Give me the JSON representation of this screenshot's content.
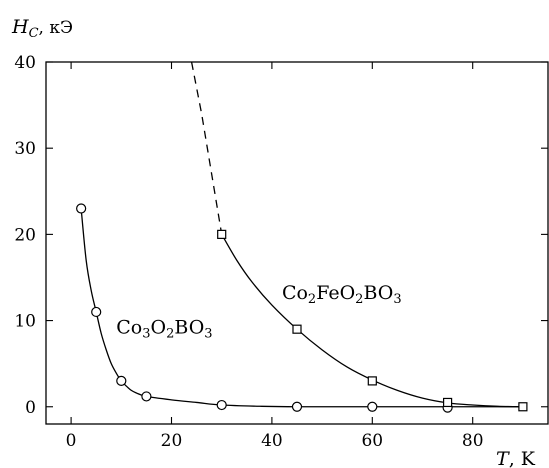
{
  "chart_data": {
    "type": "scatter",
    "ylabel_var": "H",
    "ylabel_sub": "C",
    "ylabel_unit": ", кЭ",
    "xlabel_var": "T",
    "xlabel_unit": ", K",
    "xlim": [
      -5,
      95
    ],
    "ylim": [
      -2,
      40
    ],
    "xticks": [
      0,
      20,
      40,
      60,
      80
    ],
    "yticks": [
      0,
      10,
      20,
      30,
      40
    ],
    "series": [
      {
        "label_parts": [
          {
            "t": "Co",
            "sub": false
          },
          {
            "t": "3",
            "sub": true
          },
          {
            "t": "O",
            "sub": false
          },
          {
            "t": "2",
            "sub": true
          },
          {
            "t": "BO",
            "sub": false
          },
          {
            "t": "3",
            "sub": true
          }
        ],
        "marker": "circle",
        "x": [
          2,
          5,
          10,
          15,
          30,
          45,
          60,
          75
        ],
        "y": [
          23,
          11,
          3,
          1.2,
          0.2,
          0.0,
          0.0,
          -0.1
        ],
        "curve": [
          [
            2,
            23
          ],
          [
            3,
            17
          ],
          [
            4,
            13.5
          ],
          [
            5,
            11
          ],
          [
            6,
            8.5
          ],
          [
            7,
            6.6
          ],
          [
            8,
            5.0
          ],
          [
            9,
            3.9
          ],
          [
            10,
            3.0
          ],
          [
            11,
            2.4
          ],
          [
            12,
            1.9
          ],
          [
            13,
            1.6
          ],
          [
            15,
            1.2
          ],
          [
            20,
            0.8
          ],
          [
            25,
            0.5
          ],
          [
            30,
            0.2
          ],
          [
            38,
            0.05
          ],
          [
            45,
            0.0
          ],
          [
            60,
            0.0
          ],
          [
            75,
            0.0
          ],
          [
            90,
            0.0
          ]
        ],
        "label_pos": [
          9,
          8.5
        ]
      },
      {
        "label_parts": [
          {
            "t": "Co",
            "sub": false
          },
          {
            "t": "2",
            "sub": true
          },
          {
            "t": "FeO",
            "sub": false
          },
          {
            "t": "2",
            "sub": true
          },
          {
            "t": "BO",
            "sub": false
          },
          {
            "t": "3",
            "sub": true
          }
        ],
        "marker": "square",
        "x": [
          30,
          45,
          60,
          75,
          90
        ],
        "y": [
          20,
          9,
          3,
          0.5,
          0
        ],
        "curve": [
          [
            30,
            20
          ],
          [
            33,
            17
          ],
          [
            36,
            14.5
          ],
          [
            40,
            11.8
          ],
          [
            45,
            9.0
          ],
          [
            50,
            6.6
          ],
          [
            55,
            4.6
          ],
          [
            60,
            3.1
          ],
          [
            65,
            1.9
          ],
          [
            70,
            1.0
          ],
          [
            75,
            0.45
          ],
          [
            80,
            0.2
          ],
          [
            85,
            0.05
          ],
          [
            90,
            0.0
          ]
        ],
        "dashed": [
          [
            24,
            40
          ],
          [
            26,
            34
          ],
          [
            28,
            27
          ],
          [
            30,
            20
          ]
        ],
        "label_pos": [
          42,
          12.5
        ]
      }
    ]
  }
}
